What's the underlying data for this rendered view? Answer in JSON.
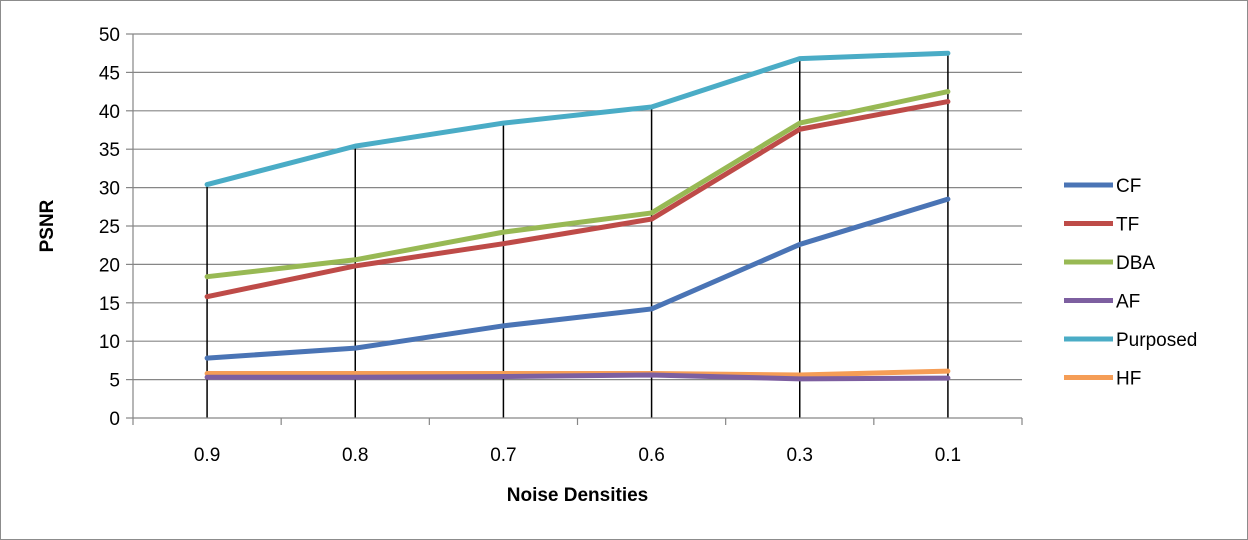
{
  "chart_data": {
    "type": "line",
    "xlabel": "Noise Densities",
    "ylabel": "PSNR",
    "categories": [
      "0.9",
      "0.8",
      "0.7",
      "0.6",
      "0.3",
      "0.1"
    ],
    "ylim": [
      0,
      50
    ],
    "yticks": [
      "0",
      "5",
      "10",
      "15",
      "20",
      "25",
      "30",
      "35",
      "40",
      "45",
      "50"
    ],
    "grid": true,
    "drop_lines": true,
    "legend_position": "right",
    "series": [
      {
        "name": "CF",
        "color": "#4a74b5",
        "values": [
          7.8,
          9.1,
          12.0,
          14.2,
          22.6,
          28.5
        ]
      },
      {
        "name": "TF",
        "color": "#be4b48",
        "values": [
          15.8,
          19.8,
          22.7,
          25.9,
          37.6,
          41.2
        ]
      },
      {
        "name": "DBA",
        "color": "#98b954",
        "values": [
          18.4,
          20.6,
          24.2,
          26.7,
          38.4,
          42.5
        ]
      },
      {
        "name": "AF",
        "color": "#7d5fa0",
        "values": [
          5.3,
          5.3,
          5.4,
          5.6,
          5.1,
          5.2
        ]
      },
      {
        "name": "Purposed",
        "color": "#4aacc6",
        "values": [
          30.4,
          35.4,
          38.4,
          40.5,
          46.8,
          47.5
        ]
      },
      {
        "name": "HF",
        "color": "#f59d56",
        "values": [
          5.8,
          5.8,
          5.8,
          5.8,
          5.6,
          6.1
        ]
      }
    ]
  }
}
